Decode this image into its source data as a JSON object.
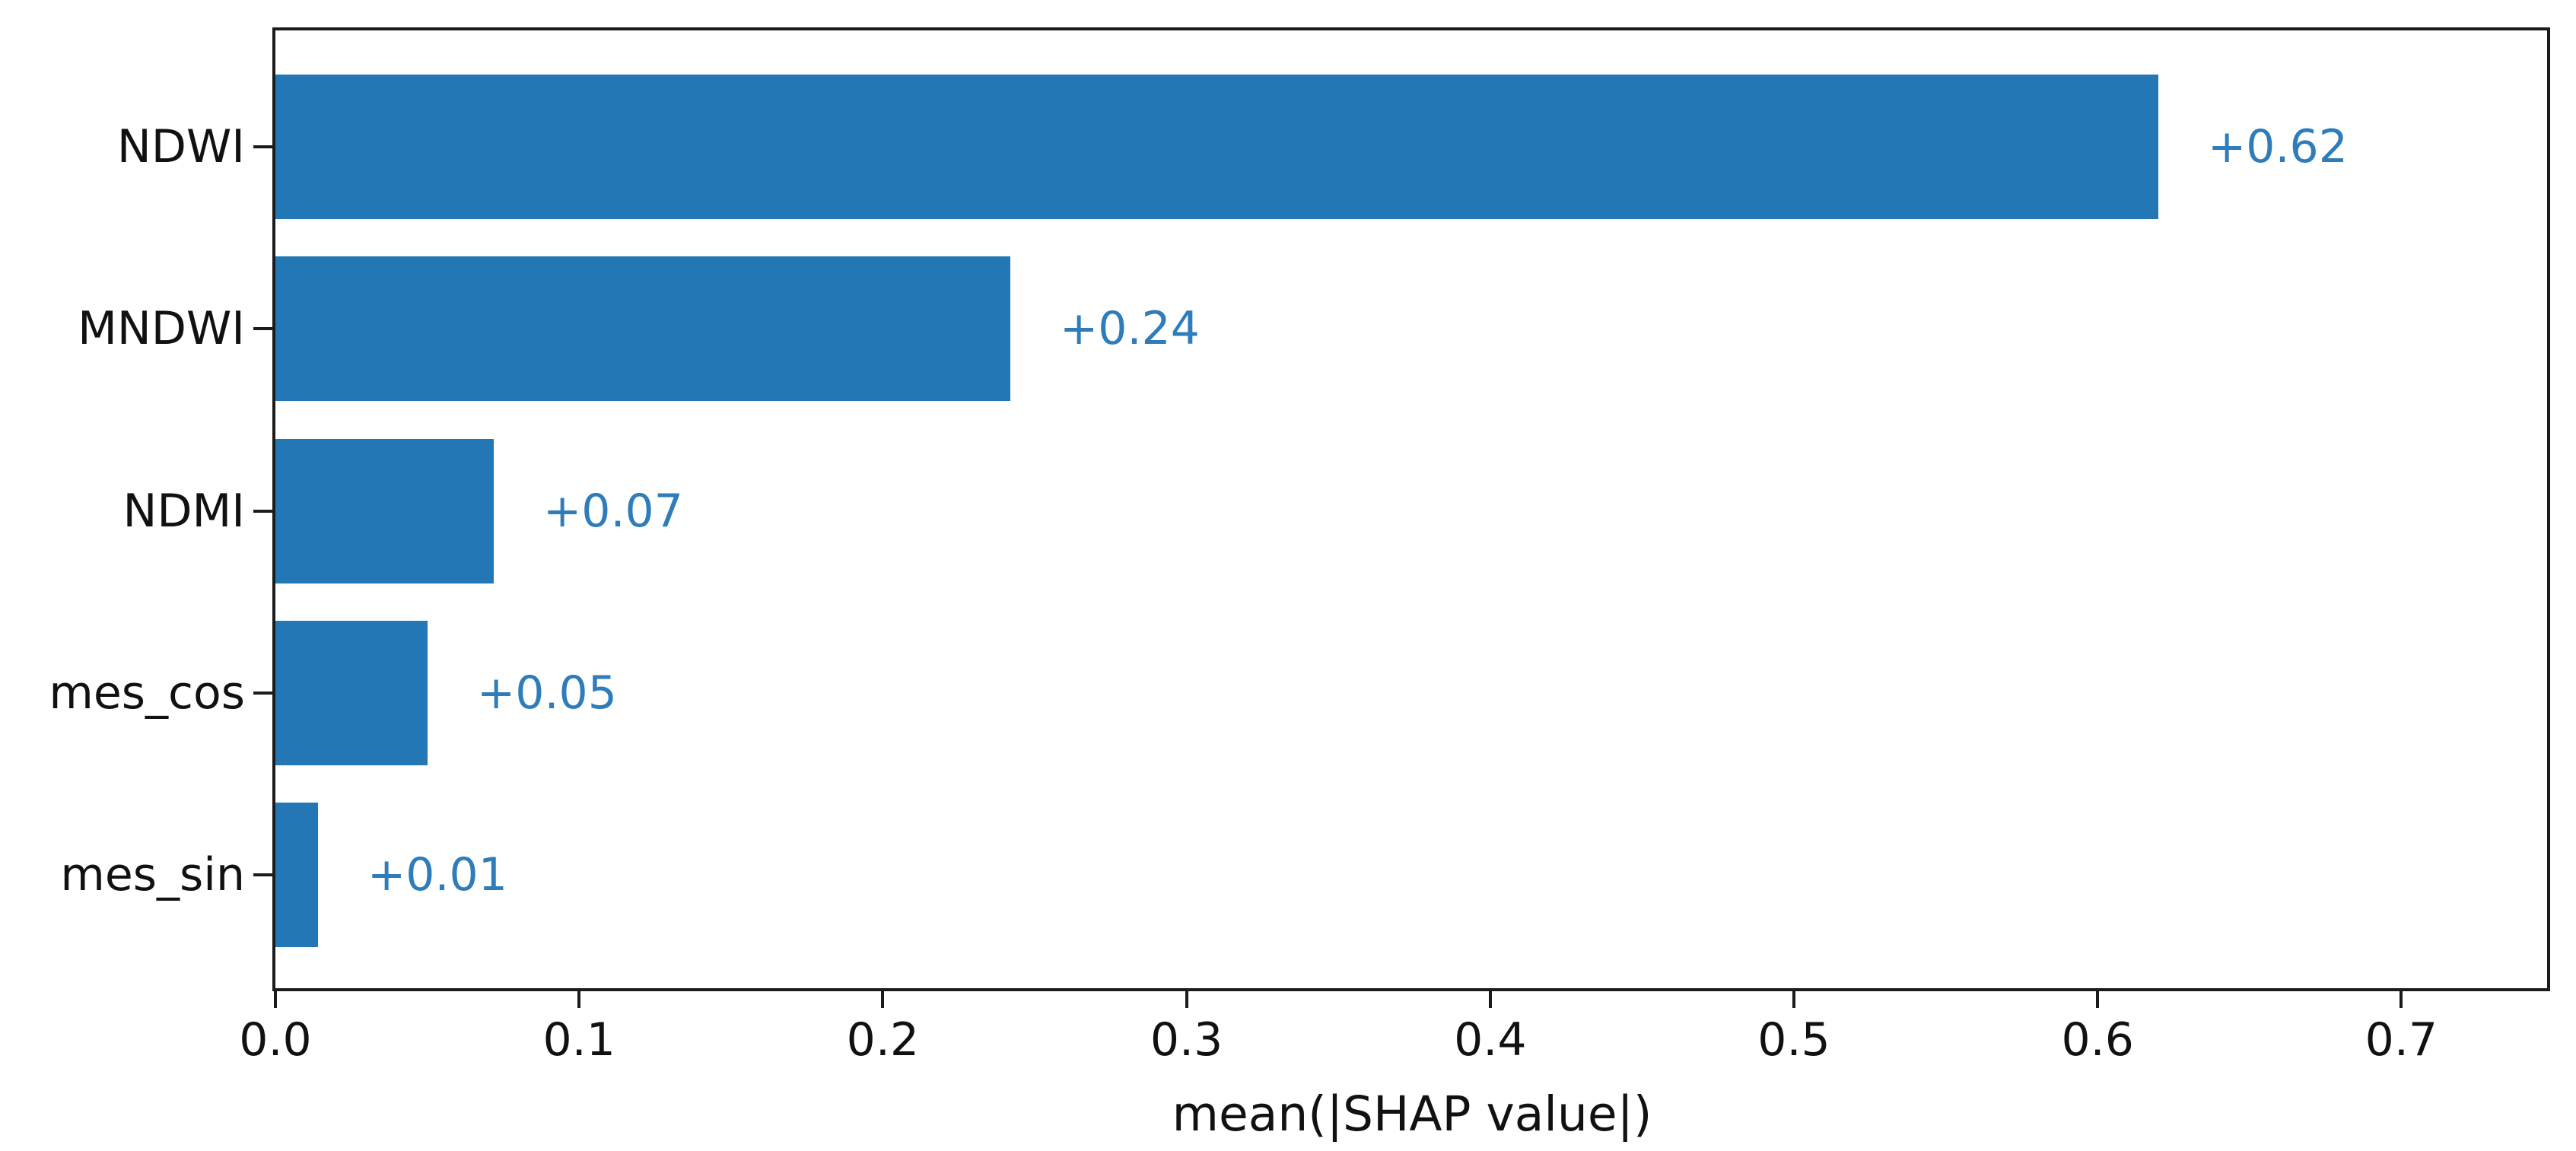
{
  "chart_data": {
    "type": "bar",
    "orientation": "horizontal",
    "title": "",
    "xlabel": "mean(|SHAP value|)",
    "ylabel": "",
    "categories": [
      "NDWI",
      "MNDWI",
      "NDMI",
      "mes_cos",
      "mes_sin"
    ],
    "values": [
      0.62,
      0.242,
      0.072,
      0.05,
      0.014
    ],
    "value_labels": [
      "+0.62",
      "+0.24",
      "+0.07",
      "+0.05",
      "+0.01"
    ],
    "xticks": [
      0.0,
      0.1,
      0.2,
      0.3,
      0.4,
      0.5,
      0.6,
      0.7
    ],
    "xtick_labels": [
      "0.0",
      "0.1",
      "0.2",
      "0.3",
      "0.4",
      "0.5",
      "0.6",
      "0.7"
    ],
    "xlim": [
      0,
      0.748
    ],
    "grid": false,
    "legend": null,
    "bar_color": "#2277b4",
    "value_label_color": "#2e7cba",
    "axis_color": "#1b1b1b",
    "text_color": "#111111"
  }
}
